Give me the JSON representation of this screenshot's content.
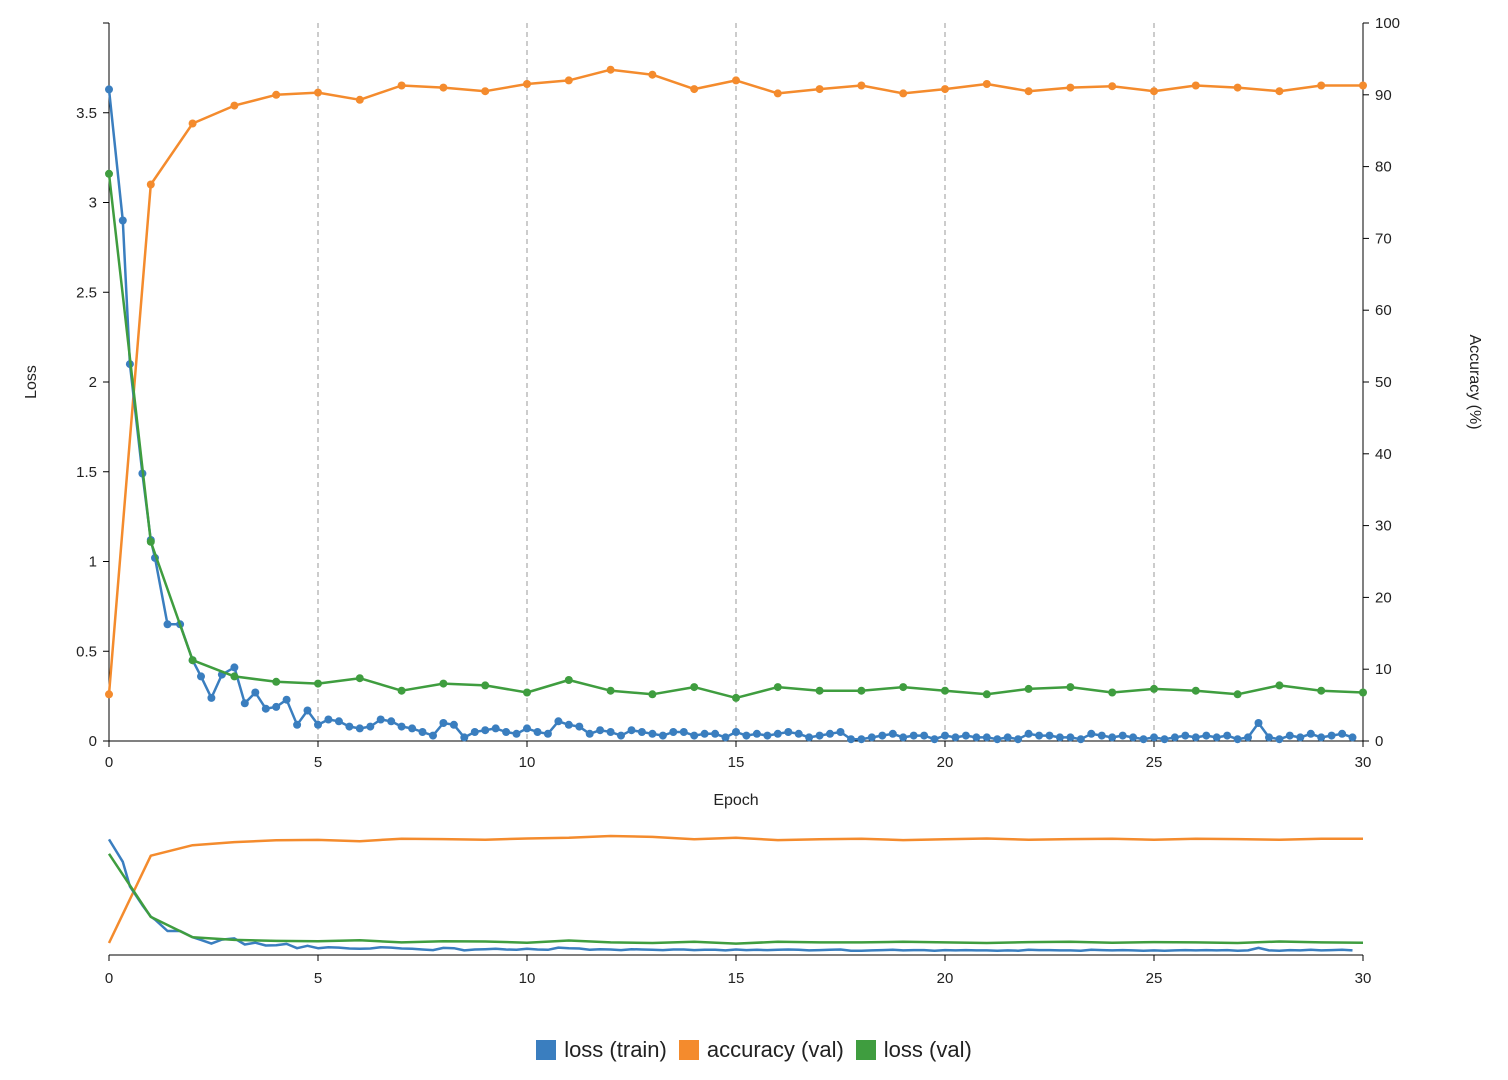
{
  "chart_data": [
    {
      "type": "line",
      "title": "",
      "xlabel": "Epoch",
      "ylabel_left": "Loss",
      "ylabel_right": "Accuracy (%)",
      "xlim": [
        0,
        30
      ],
      "ylim_left": [
        0,
        4
      ],
      "ylim_right": [
        0,
        100
      ],
      "x_ticks": [
        "0",
        "5",
        "10",
        "15",
        "20",
        "25",
        "30"
      ],
      "y_left_ticks": [
        "0",
        "0.5",
        "1",
        "1.5",
        "2",
        "2.5",
        "3",
        "3.5"
      ],
      "y_right_ticks": [
        "0",
        "10",
        "20",
        "30",
        "40",
        "50",
        "60",
        "70",
        "80",
        "90",
        "100"
      ],
      "vertical_gridlines": "dashed at every 5 epochs",
      "series": [
        {
          "name": "loss (train)",
          "axis": "left",
          "color": "#3a7ebf",
          "x": [
            0,
            0.33,
            0.5,
            0.8,
            1.0,
            1.1,
            1.4,
            1.7,
            2.0,
            2.2,
            2.45,
            2.7,
            3.0,
            3.25,
            3.5,
            3.75,
            4.0,
            4.25,
            4.5,
            4.75,
            5.0,
            5.25,
            5.5,
            5.75,
            6.0,
            6.25,
            6.5,
            6.75,
            7.0,
            7.25,
            7.5,
            7.75,
            8.0,
            8.25,
            8.5,
            8.75,
            9.0,
            9.25,
            9.5,
            9.75,
            10.0,
            10.25,
            10.5,
            10.75,
            11.0,
            11.25,
            11.5,
            11.75,
            12.0,
            12.25,
            12.5,
            12.75,
            13.0,
            13.25,
            13.5,
            13.75,
            14.0,
            14.25,
            14.5,
            14.75,
            15.0,
            15.25,
            15.5,
            15.75,
            16.0,
            16.25,
            16.5,
            16.75,
            17.0,
            17.25,
            17.5,
            17.75,
            18.0,
            18.25,
            18.5,
            18.75,
            19.0,
            19.25,
            19.5,
            19.75,
            20.0,
            20.25,
            20.5,
            20.75,
            21.0,
            21.25,
            21.5,
            21.75,
            22.0,
            22.25,
            22.5,
            22.75,
            23.0,
            23.25,
            23.5,
            23.75,
            24.0,
            24.25,
            24.5,
            24.75,
            25.0,
            25.25,
            25.5,
            25.75,
            26.0,
            26.25,
            26.5,
            26.75,
            27.0,
            27.25,
            27.5,
            27.75,
            28.0,
            28.25,
            28.5,
            28.75,
            29.0,
            29.25,
            29.5,
            29.75
          ],
          "values": [
            3.63,
            2.9,
            2.1,
            1.49,
            1.12,
            1.02,
            0.65,
            0.65,
            0.45,
            0.36,
            0.24,
            0.37,
            0.41,
            0.21,
            0.27,
            0.18,
            0.19,
            0.23,
            0.09,
            0.17,
            0.09,
            0.12,
            0.11,
            0.08,
            0.07,
            0.08,
            0.12,
            0.11,
            0.08,
            0.07,
            0.05,
            0.03,
            0.1,
            0.09,
            0.02,
            0.05,
            0.06,
            0.07,
            0.05,
            0.04,
            0.07,
            0.05,
            0.04,
            0.11,
            0.09,
            0.08,
            0.04,
            0.06,
            0.05,
            0.03,
            0.06,
            0.05,
            0.04,
            0.03,
            0.05,
            0.05,
            0.03,
            0.04,
            0.04,
            0.02,
            0.05,
            0.03,
            0.04,
            0.03,
            0.04,
            0.05,
            0.04,
            0.02,
            0.03,
            0.04,
            0.05,
            0.01,
            0.01,
            0.02,
            0.03,
            0.04,
            0.02,
            0.03,
            0.03,
            0.01,
            0.03,
            0.02,
            0.03,
            0.02,
            0.02,
            0.01,
            0.02,
            0.01,
            0.04,
            0.03,
            0.03,
            0.02,
            0.02,
            0.01,
            0.04,
            0.03,
            0.02,
            0.03,
            0.02,
            0.01,
            0.02,
            0.01,
            0.02,
            0.03,
            0.02,
            0.03,
            0.02,
            0.03,
            0.01,
            0.02,
            0.1,
            0.02,
            0.01,
            0.03,
            0.02,
            0.04,
            0.02,
            0.03,
            0.04,
            0.02
          ]
        },
        {
          "name": "accuracy (val)",
          "axis": "right",
          "color": "#f48b2d",
          "x": [
            0,
            1,
            2,
            3,
            4,
            5,
            6,
            7,
            8,
            9,
            10,
            11,
            12,
            13,
            14,
            15,
            16,
            17,
            18,
            19,
            20,
            21,
            22,
            23,
            24,
            25,
            26,
            27,
            28,
            29,
            30
          ],
          "values": [
            6.5,
            77.5,
            86.0,
            88.5,
            90.0,
            90.3,
            89.3,
            91.3,
            91.0,
            90.5,
            91.5,
            92.0,
            93.5,
            92.8,
            90.8,
            92.0,
            90.2,
            90.8,
            91.3,
            90.2,
            90.8,
            91.5,
            90.5,
            91.0,
            91.2,
            90.5,
            91.3,
            91.0,
            90.5,
            91.3,
            91.3
          ]
        },
        {
          "name": "loss (val)",
          "axis": "left",
          "color": "#3f9d3f",
          "x": [
            0,
            1,
            2,
            3,
            4,
            5,
            6,
            7,
            8,
            9,
            10,
            11,
            12,
            13,
            14,
            15,
            16,
            17,
            18,
            19,
            20,
            21,
            22,
            23,
            24,
            25,
            26,
            27,
            28,
            29,
            30
          ],
          "values": [
            3.16,
            1.11,
            0.45,
            0.36,
            0.33,
            0.32,
            0.35,
            0.28,
            0.32,
            0.31,
            0.27,
            0.34,
            0.28,
            0.26,
            0.3,
            0.24,
            0.3,
            0.28,
            0.28,
            0.3,
            0.28,
            0.26,
            0.29,
            0.3,
            0.27,
            0.29,
            0.28,
            0.26,
            0.31,
            0.28,
            0.27
          ]
        }
      ]
    },
    {
      "type": "line",
      "role": "overview",
      "xlim": [
        0,
        30
      ],
      "x_ticks": [
        "0",
        "5",
        "10",
        "15",
        "20",
        "25",
        "30"
      ],
      "note": "overview of same three series"
    }
  ],
  "legend": [
    {
      "label": "loss (train)",
      "color": "#3a7ebf"
    },
    {
      "label": "accuracy (val)",
      "color": "#f48b2d"
    },
    {
      "label": "loss (val)",
      "color": "#3f9d3f"
    }
  ]
}
